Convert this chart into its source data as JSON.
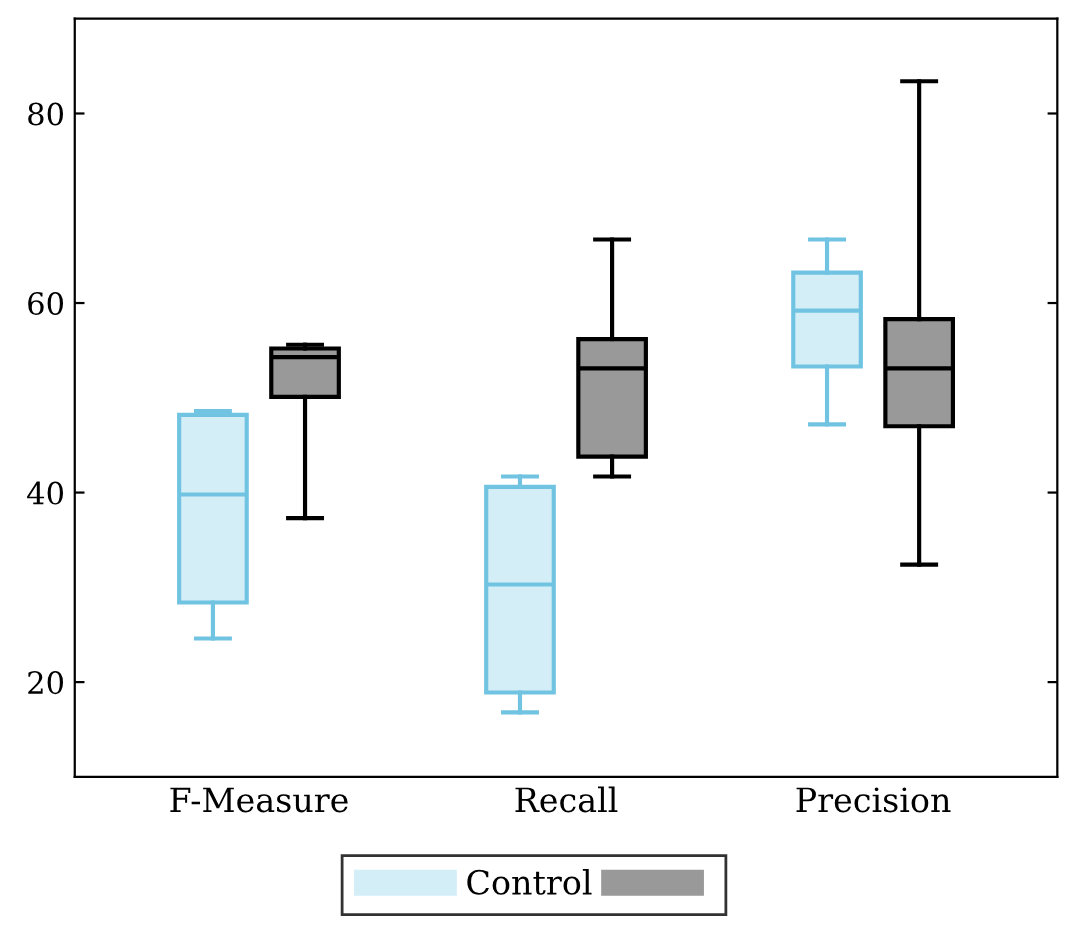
{
  "chart_data": {
    "type": "box",
    "categories": [
      "F-Measure",
      "Recall",
      "Precision"
    ],
    "ylim": [
      10,
      90
    ],
    "yticks": [
      20,
      40,
      60,
      80
    ],
    "grid": false,
    "legend": "bottom",
    "series": [
      {
        "name": "Control",
        "color": "#d4eef7",
        "boxes": [
          {
            "low": 24.6,
            "q1": 28.4,
            "median": 39.8,
            "q3": 48.2,
            "high": 48.6
          },
          {
            "low": 16.8,
            "q1": 18.9,
            "median": 30.3,
            "q3": 40.6,
            "high": 41.7
          },
          {
            "low": 47.2,
            "q1": 53.3,
            "median": 59.2,
            "q3": 63.2,
            "high": 66.7
          }
        ]
      },
      {
        "color": "#999999",
        "boxes": [
          {
            "low": 37.3,
            "q1": 50.1,
            "median": 54.3,
            "q3": 55.2,
            "high": 55.6
          },
          {
            "low": 41.7,
            "q1": 43.8,
            "median": 53.1,
            "q3": 56.2,
            "high": 66.7
          },
          {
            "low": 32.4,
            "q1": 47.0,
            "median": 53.1,
            "q3": 58.3,
            "high": 83.4
          }
        ]
      }
    ]
  }
}
